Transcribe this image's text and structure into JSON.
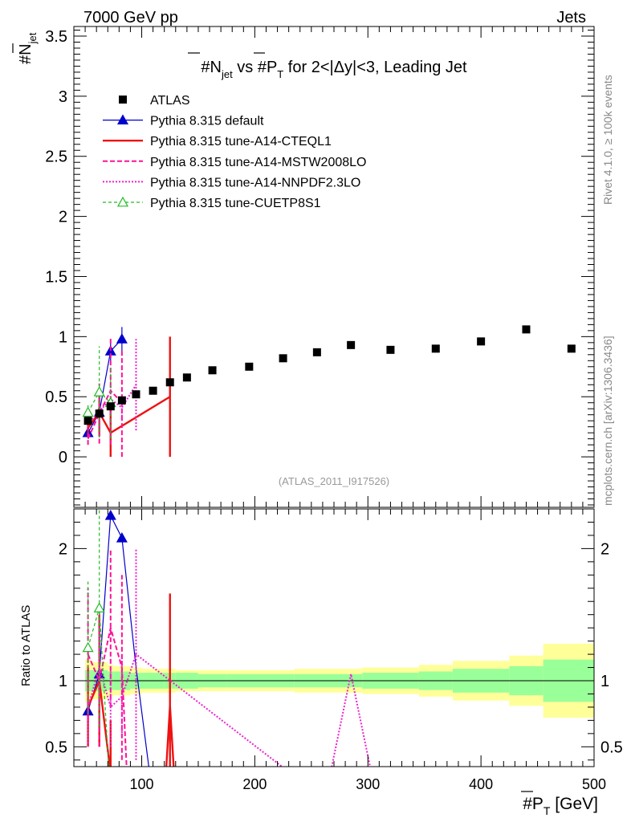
{
  "header": {
    "energy_label": "7000 GeV pp",
    "process_label": "Jets",
    "side_label_top": "Rivet 4.1.0, ≥ 100k events",
    "side_label_bottom": "mcplots.cern.ch [arXiv:1306.3436]",
    "watermark": "(ATLAS_2011_I917526)"
  },
  "chart_data": {
    "type": "scatter",
    "title": "#N_jet vs #P_T for 2<|Δy|<3, Leading Jet",
    "title_parts": {
      "a": "#",
      "b": "N",
      "c": "jet",
      "d": " vs #",
      "e": "P",
      "f": "T",
      "g": " for 2<|Δy|<3, Leading Jet"
    },
    "xlabel": "#P_T [GeV]",
    "xlabel_parts": {
      "a": "#",
      "b": "P",
      "c": "T",
      "d": " [GeV]"
    },
    "ylabel": "#N_jet",
    "ylabel_parts": {
      "a": "#",
      "b": "N",
      "c": "jet"
    },
    "ratio_ylabel": "Ratio to ATLAS",
    "xlim": [
      40,
      500
    ],
    "ylim": [
      -0.42,
      3.58
    ],
    "ratio_ylim": [
      0.35,
      2.3
    ],
    "x_ticks": [
      {
        "v": 100,
        "label": "100"
      },
      {
        "v": 200,
        "label": "200"
      },
      {
        "v": 300,
        "label": "300"
      },
      {
        "v": 400,
        "label": "400"
      },
      {
        "v": 500,
        "label": "500"
      }
    ],
    "y_ticks": [
      {
        "v": 0,
        "label": "0"
      },
      {
        "v": 0.5,
        "label": "0.5"
      },
      {
        "v": 1,
        "label": "1"
      },
      {
        "v": 1.5,
        "label": "1.5"
      },
      {
        "v": 2,
        "label": "2"
      },
      {
        "v": 2.5,
        "label": "2.5"
      },
      {
        "v": 3,
        "label": "3"
      },
      {
        "v": 3.5,
        "label": "3.5"
      }
    ],
    "ratio_ticks": [
      {
        "v": 0.5,
        "label": "0.5"
      },
      {
        "v": 1,
        "label": "1"
      },
      {
        "v": 2,
        "label": "2"
      }
    ],
    "data": {
      "name": "ATLAS",
      "x": [
        52.5,
        62.5,
        72.5,
        82.5,
        95,
        110,
        125,
        140,
        162.5,
        195,
        225,
        255,
        285,
        320,
        360,
        400,
        440,
        480
      ],
      "y": [
        0.3,
        0.36,
        0.42,
        0.47,
        0.52,
        0.55,
        0.62,
        0.66,
        0.72,
        0.75,
        0.82,
        0.87,
        0.93,
        0.89,
        0.9,
        0.96,
        1.06,
        0.9
      ],
      "bins": [
        [
          50,
          55
        ],
        [
          55,
          70
        ],
        [
          70,
          75
        ],
        [
          75,
          90
        ],
        [
          90,
          100
        ],
        [
          100,
          120
        ],
        [
          120,
          130
        ],
        [
          130,
          150
        ],
        [
          150,
          175
        ],
        [
          175,
          215
        ],
        [
          215,
          235
        ],
        [
          235,
          275
        ],
        [
          275,
          295
        ],
        [
          295,
          345
        ],
        [
          345,
          375
        ],
        [
          375,
          425
        ],
        [
          425,
          455
        ],
        [
          455,
          500
        ]
      ],
      "ratio_band_inner": [
        0.08,
        0.08,
        0.07,
        0.07,
        0.06,
        0.06,
        0.06,
        0.06,
        0.05,
        0.05,
        0.05,
        0.05,
        0.05,
        0.06,
        0.07,
        0.09,
        0.11,
        0.16
      ],
      "ratio_band_outer": [
        0.16,
        0.14,
        0.12,
        0.11,
        0.1,
        0.09,
        0.09,
        0.08,
        0.08,
        0.08,
        0.08,
        0.09,
        0.09,
        0.1,
        0.12,
        0.15,
        0.19,
        0.28
      ]
    },
    "series": [
      {
        "name": "Pythia 8.315 default",
        "color": "#0000cc",
        "dash": "",
        "marker": "triangle-filled",
        "width": 1.2,
        "x": [
          52.5,
          62.5,
          72.5,
          82.5
        ],
        "y": [
          0.2,
          0.37,
          0.88,
          0.98
        ],
        "err": [
          0.04,
          0.05,
          0.1,
          0.1
        ],
        "ratio_x": [
          52.5,
          62.5,
          72.5,
          82.5,
          95,
          110
        ],
        "ratio_y": [
          0.77,
          1.05,
          2.25,
          2.08,
          1.1,
          0.1
        ]
      },
      {
        "name": "Pythia 8.315 tune-A14-CTEQL1",
        "color": "#ee1111",
        "dash": "",
        "marker": "none",
        "width": 2.4,
        "x": [
          52.5,
          62.5,
          72.5,
          125
        ],
        "y": [
          0.24,
          0.37,
          0.2,
          0.5
        ],
        "err": [
          0.08,
          0.2,
          0.2,
          0.5
        ],
        "ratio_x": [
          52.5,
          62.5,
          72.5,
          78,
          120,
          125,
          130
        ],
        "ratio_y": [
          0.8,
          1.0,
          0.3,
          0.1,
          0.1,
          0.81,
          0.1
        ],
        "ratio_err": [
          0.3,
          0.5,
          0.4,
          0,
          0,
          0.85,
          0
        ]
      },
      {
        "name": "Pythia 8.315 tune-A14-MSTW2008LO",
        "color": "#ff1199",
        "dash": "6,3",
        "marker": "none",
        "width": 2.0,
        "x": [
          52.5,
          62.5,
          72.5,
          82.5
        ],
        "y": [
          0.15,
          0.36,
          0.55,
          0.45
        ],
        "err": [
          0.05,
          0.25,
          0.45,
          0.45
        ],
        "ratio_x": [
          52.5,
          62.5,
          72.5,
          82.5,
          88
        ],
        "ratio_y": [
          1.2,
          1.0,
          1.4,
          1.1,
          0.1
        ],
        "ratio_err": [
          0.5,
          0.5,
          0.6,
          0.7,
          0
        ]
      },
      {
        "name": "Pythia 8.315 tune-A14-NNPDF2.3LO",
        "color": "#ee22cc",
        "dash": "2,2",
        "marker": "none",
        "width": 2.0,
        "x": [
          52.5,
          62.5,
          72.5,
          82.5,
          95
        ],
        "y": [
          0.27,
          0.38,
          0.48,
          0.41,
          0.6
        ],
        "err": [
          0.05,
          0.1,
          0.12,
          0.1,
          0.38
        ],
        "ratio_x": [
          52.5,
          62.5,
          72.5,
          82.5,
          95,
          262,
          285,
          308
        ],
        "ratio_y": [
          0.8,
          1.1,
          0.8,
          0.88,
          1.2,
          0.1,
          1.05,
          0.1
        ],
        "ratio_err": [
          0.3,
          0.3,
          0.3,
          0.3,
          0.8,
          0,
          0,
          0
        ]
      },
      {
        "name": "Pythia 8.315 tune-CUETP8S1",
        "color": "#22bb22",
        "dash": "4,3",
        "marker": "triangle-open",
        "width": 1.2,
        "x": [
          52.5,
          62.5,
          72.5
        ],
        "y": [
          0.37,
          0.54,
          0.45
        ],
        "err": [
          0.06,
          0.38,
          0.3
        ],
        "ratio_x": [
          52.5,
          62.5,
          72.5
        ],
        "ratio_y": [
          1.25,
          1.55,
          0.1
        ],
        "ratio_err": [
          0.5,
          0.9,
          0
        ]
      }
    ]
  }
}
